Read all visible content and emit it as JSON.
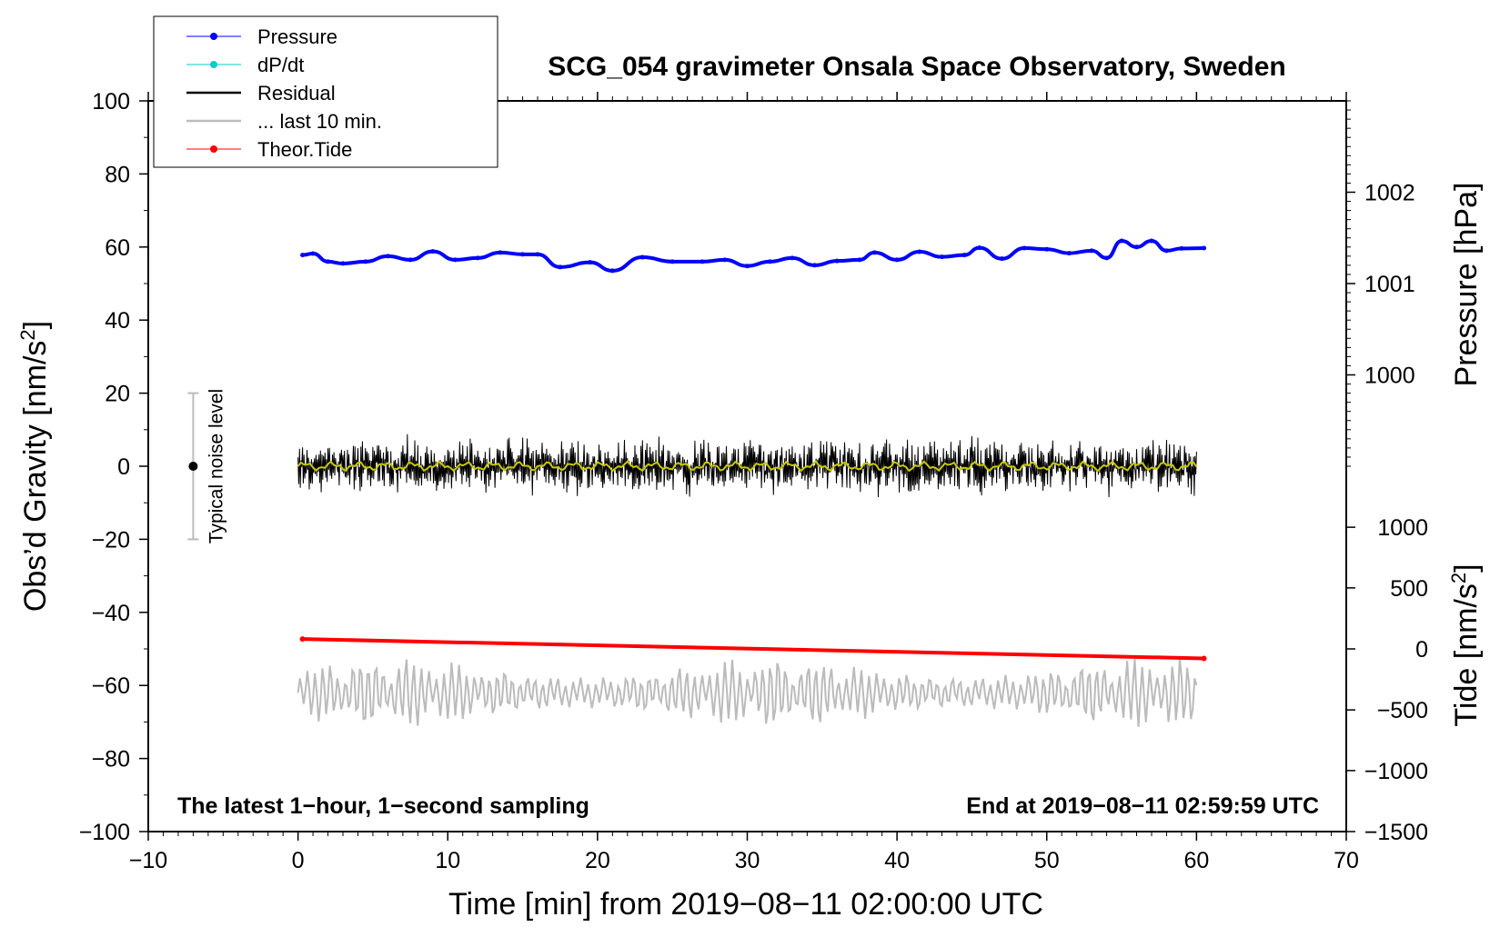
{
  "chart_data": {
    "type": "line",
    "title": "SCG_054 gravimeter Onsala Space Observatory, Sweden",
    "xlabel": "Time [min] from 2019−08−11 02:00:00 UTC",
    "ylabel_main": "Obs’d Gravity [nm/s",
    "ylabel_main_sup": "2",
    "ylabel_main_end": "]",
    "ylabel_pressure": "Pressure [hPa]",
    "ylabel_tide": "Tide [nm/s",
    "ylabel_tide_sup": "2",
    "ylabel_tide_end": "]",
    "xlim": [
      -10,
      70
    ],
    "ylim": [
      -100,
      100
    ],
    "x_ticks": [
      -10,
      0,
      10,
      20,
      30,
      40,
      50,
      60,
      70
    ],
    "x_tick_labels": [
      "−10",
      "0",
      "10",
      "20",
      "30",
      "40",
      "50",
      "60",
      "70"
    ],
    "y_ticks": [
      -100,
      -80,
      -60,
      -40,
      -20,
      0,
      20,
      40,
      60,
      80,
      100
    ],
    "y_tick_labels": [
      "−100",
      "−80",
      "−60",
      "−40",
      "−20",
      "0",
      "20",
      "40",
      "60",
      "80",
      "100"
    ],
    "pressure_axis": {
      "ticks": [
        1000,
        1001,
        1002
      ],
      "tick_labels": [
        "1000",
        "1001",
        "1002"
      ],
      "maps_to_main_y": [
        25,
        50,
        75
      ]
    },
    "tide_axis": {
      "ticks": [
        -1500,
        -1000,
        -500,
        0,
        500,
        1000
      ],
      "tick_labels": [
        "−1500",
        "−1000",
        "−500",
        "0",
        "500",
        "1000"
      ],
      "maps_to_main_y": [
        -100,
        -83.3,
        -66.7,
        -50,
        -33.3,
        -16.7
      ]
    },
    "legend": {
      "placement": "top-left",
      "entries": [
        {
          "label": "Pressure",
          "color": "#0000ff",
          "marker": true
        },
        {
          "label": "dP/dt",
          "color": "#00cccc",
          "marker": true
        },
        {
          "label": "Residual",
          "color": "#000000",
          "marker": false
        },
        {
          "label": "... last 10 min.",
          "color": "#bbbbbb",
          "marker": false
        },
        {
          "label": "Theor.Tide",
          "color": "#ff0000",
          "marker": true
        }
      ]
    },
    "series": [
      {
        "name": "Pressure",
        "color": "#0000ff",
        "x": [
          0.3,
          1.0,
          2.0,
          3.0,
          4.5,
          6.0,
          7.5,
          9.0,
          10.5,
          12.0,
          13.5,
          15.0,
          16.0,
          17.5,
          19.5,
          21.0,
          23.0,
          25.0,
          27.0,
          28.5,
          30.0,
          31.5,
          33.0,
          34.5,
          36.0,
          37.5,
          38.5,
          40.0,
          41.5,
          43.0,
          44.5,
          45.5,
          47.0,
          48.5,
          50.0,
          51.5,
          53.0,
          54.0,
          55.0,
          56.0,
          57.0,
          58.0,
          59.0,
          60.5
        ],
        "y": [
          57.8,
          58.2,
          56.0,
          55.5,
          56.0,
          57.5,
          56.5,
          58.8,
          56.5,
          57.0,
          58.5,
          58.0,
          58.0,
          54.5,
          55.8,
          53.5,
          57.2,
          56.0,
          56.0,
          56.5,
          54.8,
          56.0,
          57.0,
          55.0,
          56.2,
          56.5,
          58.5,
          56.5,
          58.7,
          57.3,
          57.8,
          59.8,
          56.8,
          59.7,
          59.4,
          58.3,
          59.0,
          57.0,
          61.7,
          60.0,
          61.7,
          59.0,
          59.6,
          59.7
        ]
      },
      {
        "name": "Theor.Tide",
        "color": "#ff0000",
        "x": [
          0.3,
          60.5
        ],
        "y": [
          -47.3,
          -52.6
        ]
      },
      {
        "name": "Residual",
        "color": "#000000",
        "x_range": [
          0,
          60
        ],
        "envelope": [
          -10,
          11
        ]
      },
      {
        "name": "... last 10 min.",
        "color": "#bbbbbb",
        "x_range": [
          0,
          60
        ],
        "envelope": [
          -71.5,
          -52
        ]
      }
    ],
    "noise_bar": {
      "x": -7,
      "y": 0,
      "low": -20,
      "high": 20,
      "label": "Typical noise level"
    },
    "annotations": {
      "bottom_left": "The latest 1−hour, 1−second sampling",
      "bottom_right": "End at 2019−08−11 02:59:59 UTC"
    }
  }
}
